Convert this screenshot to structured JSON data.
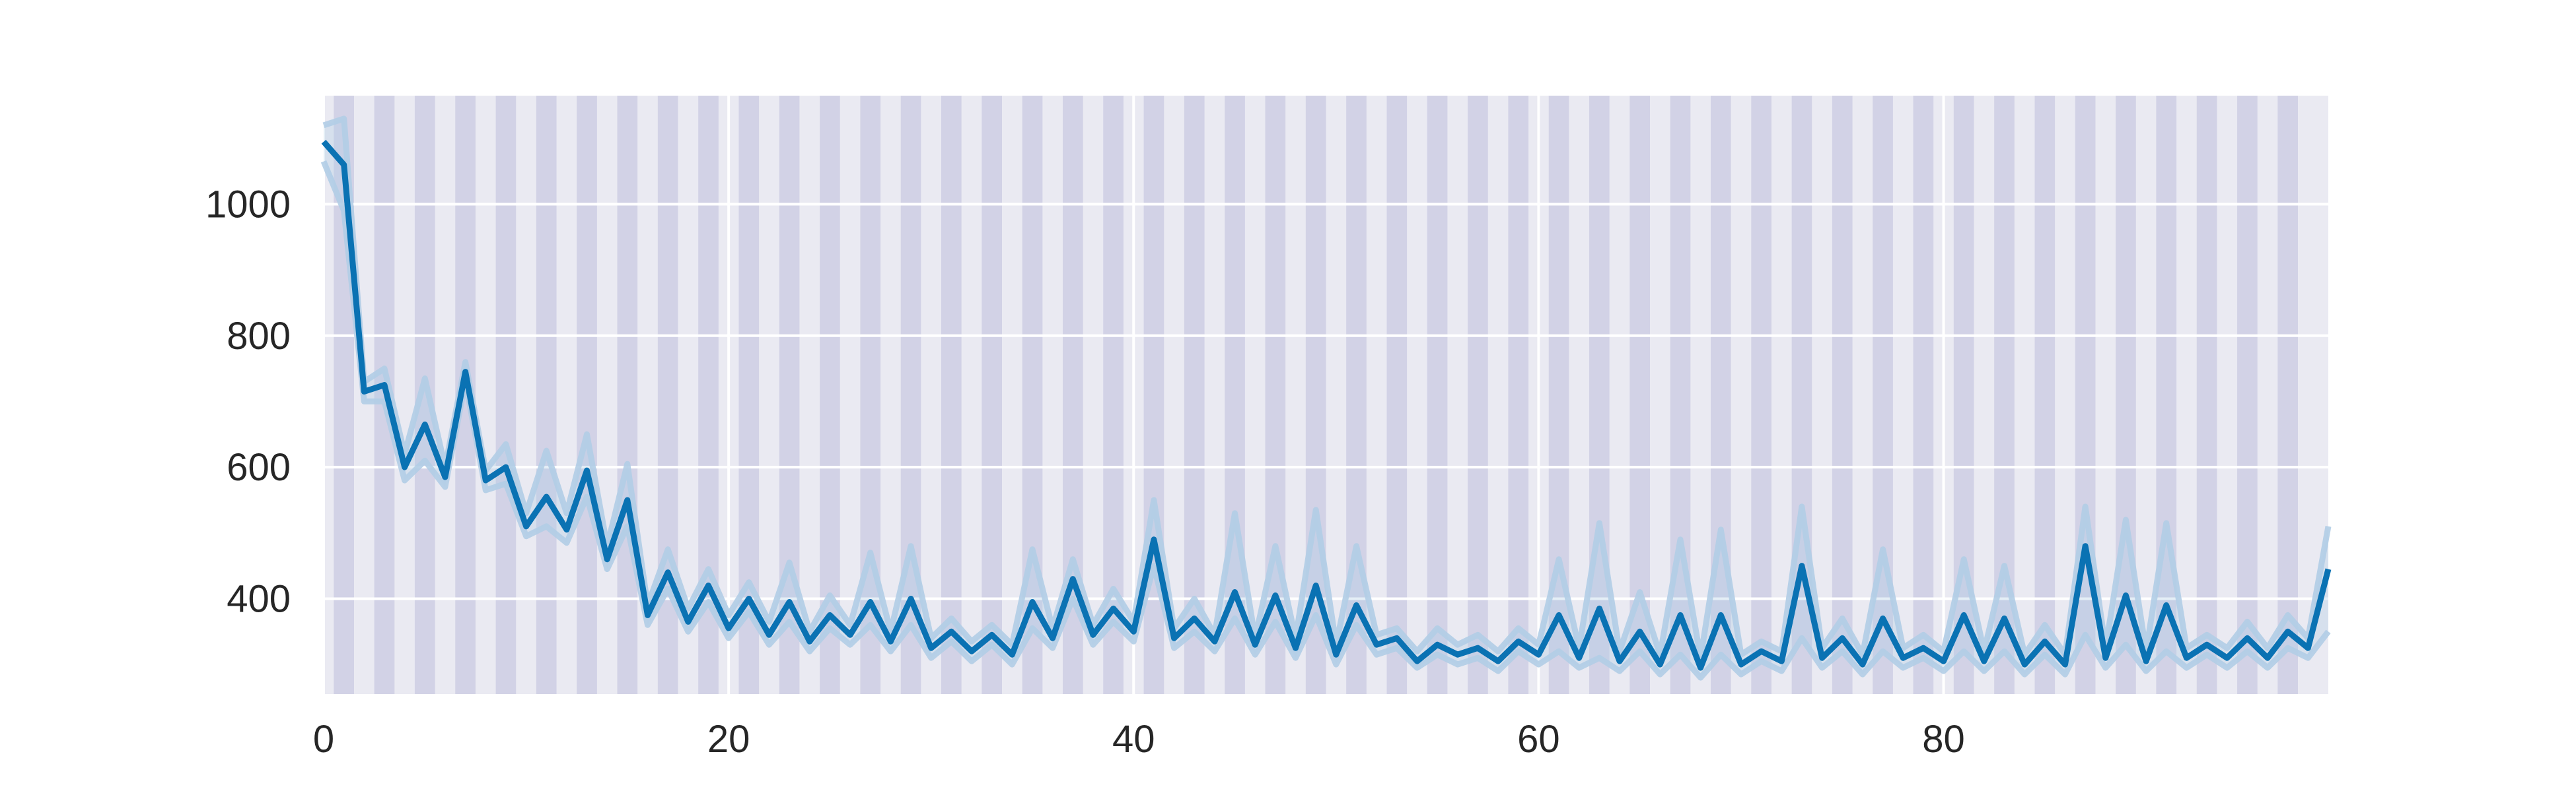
{
  "chart_data": {
    "type": "line",
    "title": "",
    "xlabel": "",
    "ylabel": "",
    "xlim": [
      0,
      99
    ],
    "ylim": [
      255,
      1165
    ],
    "x_ticks": [
      0,
      20,
      40,
      60,
      80
    ],
    "y_ticks": [
      400,
      600,
      800,
      1000
    ],
    "grid": true,
    "background_bands": "alternating shaded bands, one per odd x step",
    "colors": {
      "axes_background": "#eaeaf2",
      "band": "#d2d2e6",
      "grid": "#ffffff",
      "line": "#0a72b3",
      "envelope": "#b1cde5",
      "tick_text": "#262626"
    },
    "series": [
      {
        "values": [
          1095,
          1060,
          715,
          725,
          600,
          665,
          585,
          745,
          580,
          600,
          510,
          555,
          505,
          595,
          460,
          550,
          375,
          440,
          365,
          420,
          355,
          400,
          345,
          395,
          335,
          375,
          345,
          395,
          335,
          400,
          325,
          350,
          320,
          345,
          315,
          395,
          340,
          430,
          345,
          385,
          350,
          490,
          340,
          370,
          335,
          410,
          330,
          405,
          325,
          420,
          315,
          390,
          330,
          340,
          305,
          330,
          315,
          325,
          305,
          335,
          315,
          375,
          310,
          385,
          305,
          350,
          300,
          375,
          295,
          375,
          300,
          320,
          305,
          450,
          310,
          340,
          300,
          370,
          310,
          325,
          305,
          375,
          305,
          370,
          300,
          335,
          300,
          480,
          310,
          405,
          305,
          390,
          310,
          330,
          310,
          340,
          310,
          350,
          325,
          445
        ],
        "upper": [
          1120,
          1130,
          730,
          750,
          620,
          735,
          600,
          760,
          595,
          635,
          530,
          625,
          530,
          650,
          480,
          605,
          390,
          475,
          385,
          445,
          375,
          425,
          365,
          455,
          350,
          405,
          360,
          470,
          350,
          480,
          340,
          370,
          335,
          360,
          330,
          475,
          355,
          460,
          360,
          415,
          365,
          550,
          355,
          400,
          345,
          530,
          340,
          480,
          340,
          535,
          330,
          480,
          345,
          355,
          320,
          355,
          330,
          345,
          320,
          355,
          330,
          460,
          325,
          515,
          320,
          410,
          315,
          490,
          310,
          505,
          315,
          335,
          320,
          540,
          325,
          370,
          315,
          475,
          325,
          345,
          320,
          460,
          320,
          450,
          315,
          360,
          315,
          540,
          325,
          520,
          320,
          515,
          325,
          345,
          325,
          365,
          325,
          375,
          340,
          510
        ],
        "lower": [
          1065,
          990,
          700,
          700,
          580,
          610,
          570,
          730,
          565,
          575,
          495,
          510,
          485,
          555,
          445,
          510,
          360,
          415,
          350,
          395,
          340,
          380,
          330,
          365,
          320,
          355,
          330,
          360,
          320,
          360,
          310,
          335,
          305,
          330,
          300,
          355,
          325,
          400,
          330,
          365,
          335,
          450,
          325,
          350,
          320,
          370,
          315,
          365,
          310,
          375,
          300,
          360,
          315,
          325,
          295,
          315,
          300,
          310,
          290,
          320,
          300,
          320,
          295,
          310,
          290,
          320,
          285,
          315,
          280,
          315,
          285,
          305,
          290,
          340,
          295,
          320,
          285,
          320,
          295,
          310,
          290,
          320,
          290,
          320,
          285,
          315,
          285,
          345,
          295,
          330,
          290,
          320,
          295,
          315,
          295,
          320,
          295,
          325,
          310,
          350
        ]
      }
    ]
  }
}
